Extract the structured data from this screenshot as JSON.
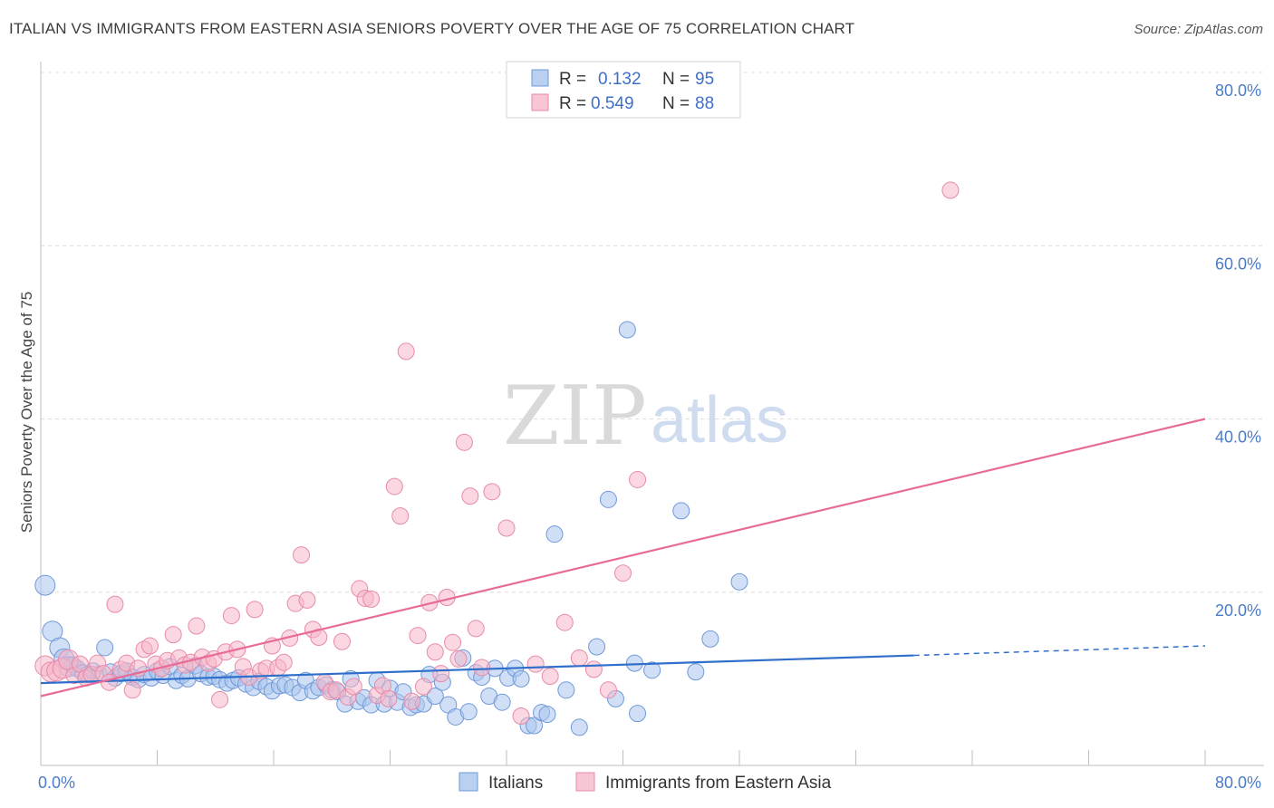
{
  "title": "ITALIAN VS IMMIGRANTS FROM EASTERN ASIA SENIORS POVERTY OVER THE AGE OF 75 CORRELATION CHART",
  "source": "Source: ZipAtlas.com",
  "watermark": {
    "zip": "ZIP",
    "atlas": "atlas"
  },
  "legend_box": [
    {
      "r_label": "R =",
      "r_value": "0.132",
      "n_label": "N =",
      "n_value": "95",
      "color": "#a9c4ee"
    },
    {
      "r_label": "R =",
      "r_value": "0.549",
      "n_label": "N =",
      "n_value": "88",
      "color": "#f6b7c9"
    }
  ],
  "chart_data": {
    "type": "scatter",
    "title": "ITALIAN VS IMMIGRANTS FROM EASTERN ASIA SENIORS POVERTY OVER THE AGE OF 75 CORRELATION CHART",
    "xlabel": "",
    "ylabel": "Seniors Poverty Over the Age of 75",
    "xlim": [
      0,
      80
    ],
    "ylim": [
      0,
      80
    ],
    "x_tick_labels": [
      "0.0%",
      "80.0%"
    ],
    "y_ticks": [
      20,
      40,
      60,
      80
    ],
    "y_tick_labels": [
      "20.0%",
      "40.0%",
      "60.0%",
      "80.0%"
    ],
    "grid": true,
    "legend_position": "bottom-center",
    "series": [
      {
        "name": "Italians",
        "color": "#a9c4ee",
        "stroke": "#6f99d8",
        "line_color": "#2f6fcb",
        "trend": {
          "x0": 0,
          "y0": 9.5,
          "x1": 60,
          "y1": 12.7,
          "dash_to": 80,
          "dash_y": 13.8
        },
        "points": [
          [
            0.3,
            20.8
          ],
          [
            0.8,
            15.5
          ],
          [
            1.3,
            13.6
          ],
          [
            1.6,
            12.3
          ],
          [
            1.9,
            11.4
          ],
          [
            2.2,
            11.6
          ],
          [
            2.5,
            11.2
          ],
          [
            2.9,
            10.7
          ],
          [
            3.2,
            10.5
          ],
          [
            3.6,
            10.9
          ],
          [
            4.0,
            10.5
          ],
          [
            4.4,
            13.6
          ],
          [
            4.8,
            10.8
          ],
          [
            5.1,
            10.1
          ],
          [
            5.5,
            10.6
          ],
          [
            5.9,
            10.9
          ],
          [
            6.3,
            10.2
          ],
          [
            6.7,
            9.9
          ],
          [
            7.1,
            10.5
          ],
          [
            7.6,
            10.1
          ],
          [
            8.0,
            10.9
          ],
          [
            8.4,
            10.4
          ],
          [
            8.9,
            11.4
          ],
          [
            9.3,
            9.8
          ],
          [
            9.7,
            10.4
          ],
          [
            10.1,
            10.0
          ],
          [
            10.6,
            11.5
          ],
          [
            11.0,
            10.6
          ],
          [
            11.5,
            10.2
          ],
          [
            11.9,
            10.3
          ],
          [
            12.3,
            9.9
          ],
          [
            12.8,
            9.5
          ],
          [
            13.2,
            9.8
          ],
          [
            13.6,
            10.1
          ],
          [
            14.1,
            9.4
          ],
          [
            14.6,
            9.0
          ],
          [
            15.0,
            9.7
          ],
          [
            15.5,
            9.1
          ],
          [
            15.9,
            8.6
          ],
          [
            16.4,
            9.2
          ],
          [
            16.8,
            9.3
          ],
          [
            17.3,
            9.0
          ],
          [
            17.8,
            8.4
          ],
          [
            18.2,
            9.8
          ],
          [
            18.7,
            8.6
          ],
          [
            19.1,
            9.0
          ],
          [
            19.6,
            9.3
          ],
          [
            20.0,
            8.7
          ],
          [
            20.4,
            8.5
          ],
          [
            20.9,
            7.1
          ],
          [
            21.3,
            10.0
          ],
          [
            21.8,
            7.4
          ],
          [
            22.2,
            7.8
          ],
          [
            22.7,
            7.0
          ],
          [
            23.1,
            9.8
          ],
          [
            23.6,
            7.1
          ],
          [
            24.0,
            8.9
          ],
          [
            24.5,
            7.3
          ],
          [
            24.9,
            8.5
          ],
          [
            25.4,
            6.7
          ],
          [
            25.8,
            7.0
          ],
          [
            26.3,
            7.1
          ],
          [
            26.7,
            10.5
          ],
          [
            27.1,
            8.0
          ],
          [
            27.6,
            9.6
          ],
          [
            28.0,
            7.0
          ],
          [
            28.5,
            5.6
          ],
          [
            29.0,
            12.4
          ],
          [
            29.4,
            6.2
          ],
          [
            29.9,
            10.7
          ],
          [
            30.3,
            10.2
          ],
          [
            30.8,
            8.0
          ],
          [
            31.2,
            11.2
          ],
          [
            31.7,
            7.3
          ],
          [
            32.1,
            10.1
          ],
          [
            32.6,
            11.2
          ],
          [
            33.0,
            10.0
          ],
          [
            33.5,
            4.6
          ],
          [
            33.9,
            4.6
          ],
          [
            34.4,
            6.1
          ],
          [
            34.8,
            5.9
          ],
          [
            35.3,
            26.7
          ],
          [
            36.1,
            8.7
          ],
          [
            37.0,
            4.4
          ],
          [
            38.2,
            13.7
          ],
          [
            39.0,
            30.7
          ],
          [
            39.5,
            7.7
          ],
          [
            40.3,
            50.3
          ],
          [
            40.8,
            11.8
          ],
          [
            41.0,
            6.0
          ],
          [
            42.0,
            11.0
          ],
          [
            44.0,
            29.4
          ],
          [
            45.0,
            10.8
          ],
          [
            46.0,
            14.6
          ],
          [
            48.0,
            21.2
          ]
        ]
      },
      {
        "name": "Immigrants from Eastern Asia",
        "color": "#f6b7c9",
        "stroke": "#e88aa8",
        "line_color": "#e76b98",
        "trend": {
          "x0": 0,
          "y0": 8.0,
          "x1": 80,
          "y1": 40.0
        },
        "points": [
          [
            0.3,
            11.5
          ],
          [
            0.7,
            10.8
          ],
          [
            1.1,
            10.9
          ],
          [
            1.5,
            11.2
          ],
          [
            1.9,
            12.2
          ],
          [
            2.3,
            10.4
          ],
          [
            2.7,
            11.7
          ],
          [
            3.1,
            10.1
          ],
          [
            3.5,
            10.5
          ],
          [
            3.9,
            11.8
          ],
          [
            4.3,
            10.6
          ],
          [
            4.7,
            9.6
          ],
          [
            5.1,
            18.6
          ],
          [
            5.5,
            11.1
          ],
          [
            5.9,
            11.8
          ],
          [
            6.3,
            8.7
          ],
          [
            6.7,
            11.2
          ],
          [
            7.1,
            13.4
          ],
          [
            7.5,
            13.8
          ],
          [
            7.9,
            11.7
          ],
          [
            8.3,
            11.2
          ],
          [
            8.7,
            12.1
          ],
          [
            9.1,
            15.1
          ],
          [
            9.5,
            12.4
          ],
          [
            9.9,
            11.6
          ],
          [
            10.3,
            11.9
          ],
          [
            10.7,
            16.1
          ],
          [
            11.1,
            12.5
          ],
          [
            11.5,
            11.8
          ],
          [
            11.9,
            12.3
          ],
          [
            12.3,
            7.6
          ],
          [
            12.7,
            13.1
          ],
          [
            13.1,
            17.3
          ],
          [
            13.5,
            13.4
          ],
          [
            13.9,
            11.4
          ],
          [
            14.3,
            10.2
          ],
          [
            14.7,
            18.0
          ],
          [
            15.1,
            10.9
          ],
          [
            15.5,
            11.2
          ],
          [
            15.9,
            13.8
          ],
          [
            16.3,
            11.3
          ],
          [
            16.7,
            11.9
          ],
          [
            17.1,
            14.7
          ],
          [
            17.5,
            18.7
          ],
          [
            17.9,
            24.3
          ],
          [
            18.3,
            19.1
          ],
          [
            18.7,
            15.7
          ],
          [
            19.1,
            14.8
          ],
          [
            19.5,
            9.6
          ],
          [
            19.9,
            8.5
          ],
          [
            20.3,
            8.7
          ],
          [
            20.7,
            14.3
          ],
          [
            21.1,
            7.9
          ],
          [
            21.5,
            9.1
          ],
          [
            21.9,
            20.4
          ],
          [
            22.3,
            19.3
          ],
          [
            22.7,
            19.2
          ],
          [
            23.1,
            8.1
          ],
          [
            23.5,
            9.2
          ],
          [
            23.9,
            7.7
          ],
          [
            24.3,
            32.2
          ],
          [
            24.7,
            28.8
          ],
          [
            25.1,
            47.8
          ],
          [
            25.5,
            7.4
          ],
          [
            25.9,
            15.0
          ],
          [
            26.3,
            9.1
          ],
          [
            26.7,
            18.8
          ],
          [
            27.1,
            13.1
          ],
          [
            27.5,
            10.6
          ],
          [
            27.9,
            19.4
          ],
          [
            28.3,
            14.2
          ],
          [
            28.7,
            12.3
          ],
          [
            29.1,
            37.3
          ],
          [
            29.5,
            31.1
          ],
          [
            29.9,
            15.8
          ],
          [
            30.3,
            11.3
          ],
          [
            31.0,
            31.6
          ],
          [
            32.0,
            27.4
          ],
          [
            33.0,
            5.7
          ],
          [
            34.0,
            11.7
          ],
          [
            35.0,
            10.3
          ],
          [
            36.0,
            16.5
          ],
          [
            37.0,
            12.4
          ],
          [
            38.0,
            11.1
          ],
          [
            39.0,
            8.7
          ],
          [
            40.0,
            22.2
          ],
          [
            41.0,
            33.0
          ],
          [
            62.5,
            66.4
          ]
        ]
      }
    ]
  }
}
